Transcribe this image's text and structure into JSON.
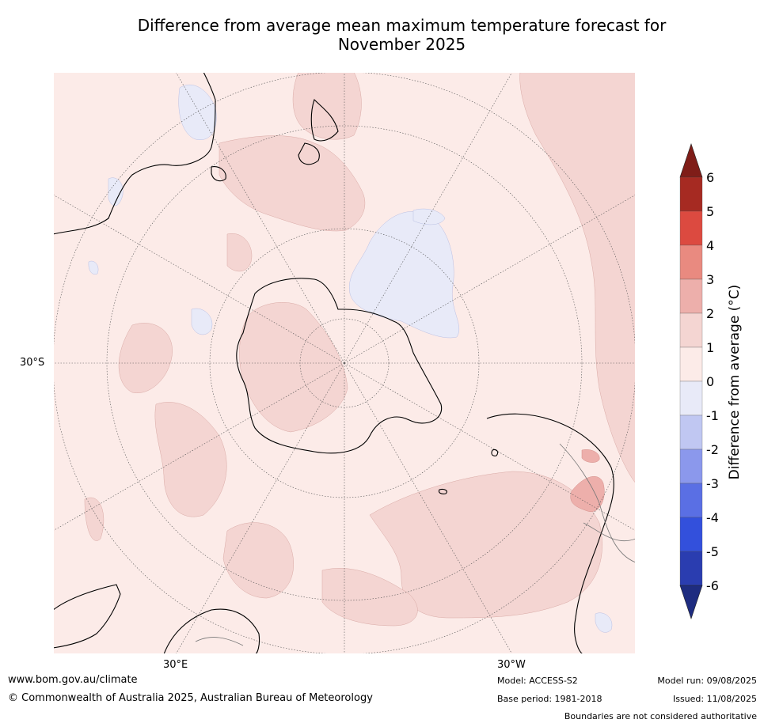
{
  "title_line1": "Difference from average mean maximum temperature forecast for",
  "title_line2": "November 2025",
  "map": {
    "projection": "south-polar-stereographic",
    "lat_label": "30°S",
    "lon_labels": [
      "30°E",
      "30°W"
    ],
    "colors": {
      "ocean_neutral": "#fcebe8",
      "warm_0_1": "#fcebe8",
      "warm_1_2": "#f4d5d2",
      "warm_2_3": "#edafab",
      "cool_0_1": "#e8eaf8",
      "coast": "#000000",
      "graticule": "#555555"
    }
  },
  "colorbar": {
    "title": "Difference from average ($^\\circ$C)",
    "ticks": [
      "6",
      "5",
      "4",
      "3",
      "2",
      "1",
      "0",
      "-1",
      "-2",
      "-3",
      "-4",
      "-5",
      "-6"
    ],
    "colors": [
      "#a62a22",
      "#dc4a40",
      "#e98a80",
      "#edafab",
      "#f4d5d2",
      "#fcebe8",
      "#e8eaf8",
      "#c0c7f2",
      "#8b98ec",
      "#5a6fe4",
      "#3350dc",
      "#2a3db0"
    ],
    "extend_max_color": "#7f1d18",
    "extend_min_color": "#1e2c80"
  },
  "footer": {
    "website": "www.bom.gov.au/climate",
    "copyright": "© Commonwealth of Australia 2025, Australian Bureau of Meteorology",
    "model": "Model: ACCESS-S2",
    "base_period": "Base period: 1981-2018",
    "model_run": "Model run: 09/08/2025",
    "issued": "Issued: 11/08/2025",
    "disclaimer": "Boundaries are not considered authoritative"
  }
}
